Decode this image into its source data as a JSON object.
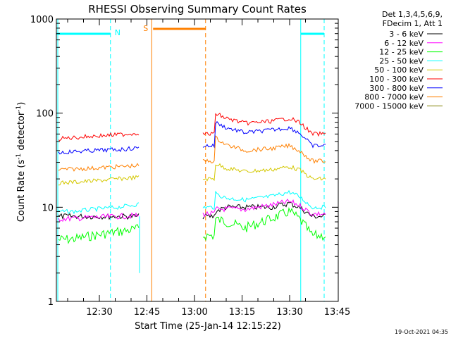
{
  "chart_data": {
    "type": "line",
    "title": "RHESSI Observing Summary Count Rates",
    "xlabel": "Start Time (25-Jan-14 12:15:22)",
    "ylabel_main": "Count Rate (s",
    "ylabel_sup1": "-1",
    "ylabel_mid": " detector",
    "ylabel_sup2": "-1",
    "ylabel_end": ")",
    "y_scale": "log",
    "ylim": [
      1,
      1000
    ],
    "y_ticks": [
      1,
      10,
      100,
      1000
    ],
    "y_tick_labels": [
      "1",
      "10",
      "100",
      "1000"
    ],
    "xlim_minutes": [
      15.37,
      96.5
    ],
    "x_ticks": [
      {
        "label": "12:30",
        "min": 30
      },
      {
        "label": "12:45",
        "min": 45
      },
      {
        "label": "13:00",
        "min": 60
      },
      {
        "label": "13:15",
        "min": 75
      },
      {
        "label": "13:30",
        "min": 90
      },
      {
        "label": "13:45",
        "min": 105
      }
    ],
    "legend": {
      "header": [
        "Det 1,3,4,5,6,9,",
        "FDecim 1, Att 1"
      ],
      "placement": "right"
    },
    "series": [
      {
        "name": "3 - 6 keV",
        "color": "#000000",
        "seg1": [
          8,
          8,
          8,
          8,
          8
        ],
        "seg2": [
          9,
          10,
          10,
          10,
          11,
          10,
          8
        ]
      },
      {
        "name": "6 - 12 keV",
        "color": "#ff00ff",
        "seg1": [
          7.5,
          7.6,
          7.8,
          8,
          8.2
        ],
        "seg2": [
          9.5,
          9.6,
          9.5,
          10.5,
          11.5,
          10.5,
          8.5
        ]
      },
      {
        "name": "12 - 25 keV",
        "color": "#00ff00",
        "seg1": [
          4.5,
          4.6,
          5,
          5.5,
          6
        ],
        "seg2": [
          7.5,
          7,
          6,
          7.5,
          9,
          7.5,
          5
        ]
      },
      {
        "name": "25 - 50 keV",
        "color": "#00ffff",
        "seg1": [
          9,
          9,
          9.5,
          10,
          11
        ],
        "seg2": [
          14,
          12.5,
          12,
          13,
          14.5,
          13,
          10
        ]
      },
      {
        "name": "50 - 100 keV",
        "color": "#d4c800",
        "seg1": [
          18,
          18.5,
          19,
          20,
          21
        ],
        "seg2": [
          29,
          26,
          24,
          25,
          27,
          25,
          20
        ]
      },
      {
        "name": "100 - 300 keV",
        "color": "#ff0000",
        "seg1": [
          53,
          55,
          57,
          59,
          62
        ],
        "seg2": [
          100,
          88,
          78,
          82,
          88,
          80,
          60
        ]
      },
      {
        "name": "300 - 800 keV",
        "color": "#0000ff",
        "seg1": [
          38,
          39,
          40,
          41,
          43
        ],
        "seg2": [
          80,
          70,
          62,
          66,
          70,
          62,
          45
        ]
      },
      {
        "name": "800 - 7000 keV",
        "color": "#ff8000",
        "seg1": [
          25,
          25.5,
          26,
          27,
          28
        ],
        "seg2": [
          55,
          46,
          40,
          42,
          45,
          40,
          31
        ]
      },
      {
        "name": "7000 - 15000 keV",
        "color": "#808000",
        "seg1": [],
        "seg2": []
      }
    ],
    "seg1_time": [
      16,
      22,
      28,
      36,
      44
    ],
    "seg2_time": [
      66.5,
      70,
      76,
      84,
      90,
      93,
      97
    ],
    "annotations": [
      {
        "label": "N",
        "color": "#00ffff"
      },
      {
        "label": "S",
        "color": "#ff8000"
      }
    ],
    "timestamp": "19-Oct-2021 04:35"
  }
}
